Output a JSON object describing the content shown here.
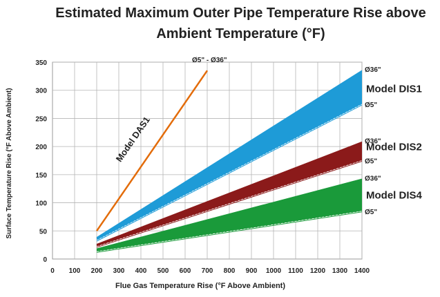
{
  "chart_data": {
    "type": "area",
    "title_lines": [
      "Estimated Maximum Outer Pipe Temperature Rise above",
      "Ambient Temperature (°F)"
    ],
    "xlabel": "Flue Gas Temperature Rise (°F Above Ambient)",
    "ylabel": "Surface Temperature Rise (°F Above Ambient)",
    "xlim": [
      0,
      1400
    ],
    "ylim": [
      0,
      350
    ],
    "x_ticks": [
      "0",
      "100",
      "200",
      "300",
      "400",
      "500",
      "600",
      "700",
      "800",
      "900",
      "1000",
      "1100",
      "1200",
      "1300",
      "1400"
    ],
    "y_ticks": [
      "0",
      "50",
      "100",
      "150",
      "200",
      "250",
      "300",
      "350"
    ],
    "grid": true,
    "series": [
      {
        "name": "Model DAS1",
        "kind": "line",
        "color": "#E36C0A",
        "range_label": "Ø5\" - Ø36\"",
        "points": [
          [
            200,
            50
          ],
          [
            700,
            335
          ]
        ]
      },
      {
        "name": "Model DIS1",
        "kind": "band",
        "color": "#1E9BD7",
        "upper_label": "Ø36\"",
        "lower_label": "Ø5\"",
        "upper": [
          [
            200,
            38
          ],
          [
            1400,
            335
          ]
        ],
        "lower": [
          [
            200,
            33
          ],
          [
            1400,
            275
          ]
        ]
      },
      {
        "name": "Model DIS2",
        "kind": "band",
        "color": "#8B1A1A",
        "upper_label": "Ø36\"",
        "lower_label": "Ø5\"",
        "upper": [
          [
            200,
            26
          ],
          [
            1400,
            208
          ]
        ],
        "lower": [
          [
            200,
            22
          ],
          [
            1400,
            175
          ]
        ]
      },
      {
        "name": "Model DIS4",
        "kind": "band",
        "color": "#1A9A3A",
        "upper_label": "Ø36\"",
        "lower_label": "Ø5\"",
        "upper": [
          [
            200,
            18
          ],
          [
            1400,
            142
          ]
        ],
        "lower": [
          [
            200,
            13
          ],
          [
            1400,
            85
          ]
        ]
      }
    ]
  }
}
